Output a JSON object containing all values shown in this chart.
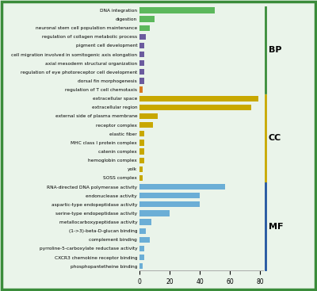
{
  "categories": [
    "DNA integration",
    "digestion",
    "neuronal stem cell population maintenance",
    "regulation of collagen metabolic process",
    "pigment cell development",
    "cell migration involved in somitogenic axis elongation",
    "axial mesoderm structural organization",
    "regulation of eye photoreceptor cell development",
    "dorsal fin morphogenesis",
    "regulation of T cell chemotaxis",
    "extracellular space",
    "extracellular region",
    "external side of plasma membrane",
    "receptor complex",
    "elastic fiber",
    "MHC class I protein complex",
    "catenin complex",
    "hemoglobin complex",
    "yolk",
    "SOSS complex",
    "RNA-directed DNA polymerase activity",
    "endonuclease activity",
    "aspartic-type endopeptidase activity",
    "serine-type endopeptidase activity",
    "metallocarboxypeptidase activity",
    "(1->3)-beta-D-glucan binding",
    "complement binding",
    "pyrroline-5-carboxylate reductase activity",
    "CXCR3 chemokine receptor binding",
    "phosphopantetheine binding"
  ],
  "values": [
    50,
    10,
    7,
    4,
    3,
    3,
    3,
    3,
    3,
    2,
    79,
    74,
    12,
    9,
    3,
    3,
    3,
    3,
    2,
    2,
    57,
    40,
    40,
    20,
    8,
    4,
    7,
    3,
    3,
    2
  ],
  "colors": [
    "#5cb85c",
    "#5cb85c",
    "#5cb85c",
    "#6b5b9e",
    "#6b5b9e",
    "#6b5b9e",
    "#6b5b9e",
    "#6b5b9e",
    "#6b5b9e",
    "#d97b20",
    "#c8a800",
    "#c8a800",
    "#c8a800",
    "#c8a800",
    "#c8a800",
    "#c8a800",
    "#c8a800",
    "#c8a800",
    "#c8a800",
    "#c8a800",
    "#6baed6",
    "#6baed6",
    "#6baed6",
    "#6baed6",
    "#6baed6",
    "#6baed6",
    "#6baed6",
    "#6baed6",
    "#6baed6",
    "#6baed6"
  ],
  "group_labels": [
    "BP",
    "CC",
    "MF"
  ],
  "group_ranges": [
    [
      0,
      9
    ],
    [
      10,
      19
    ],
    [
      20,
      29
    ]
  ],
  "group_colors": [
    "#3a8c3a",
    "#c8a800",
    "#2255a0"
  ],
  "xlim": [
    0,
    82
  ],
  "xticks": [
    0,
    20,
    40,
    60,
    80
  ],
  "bg_color": "#eaf4ea",
  "border_color": "#3a8c3a",
  "bar_height": 0.65
}
